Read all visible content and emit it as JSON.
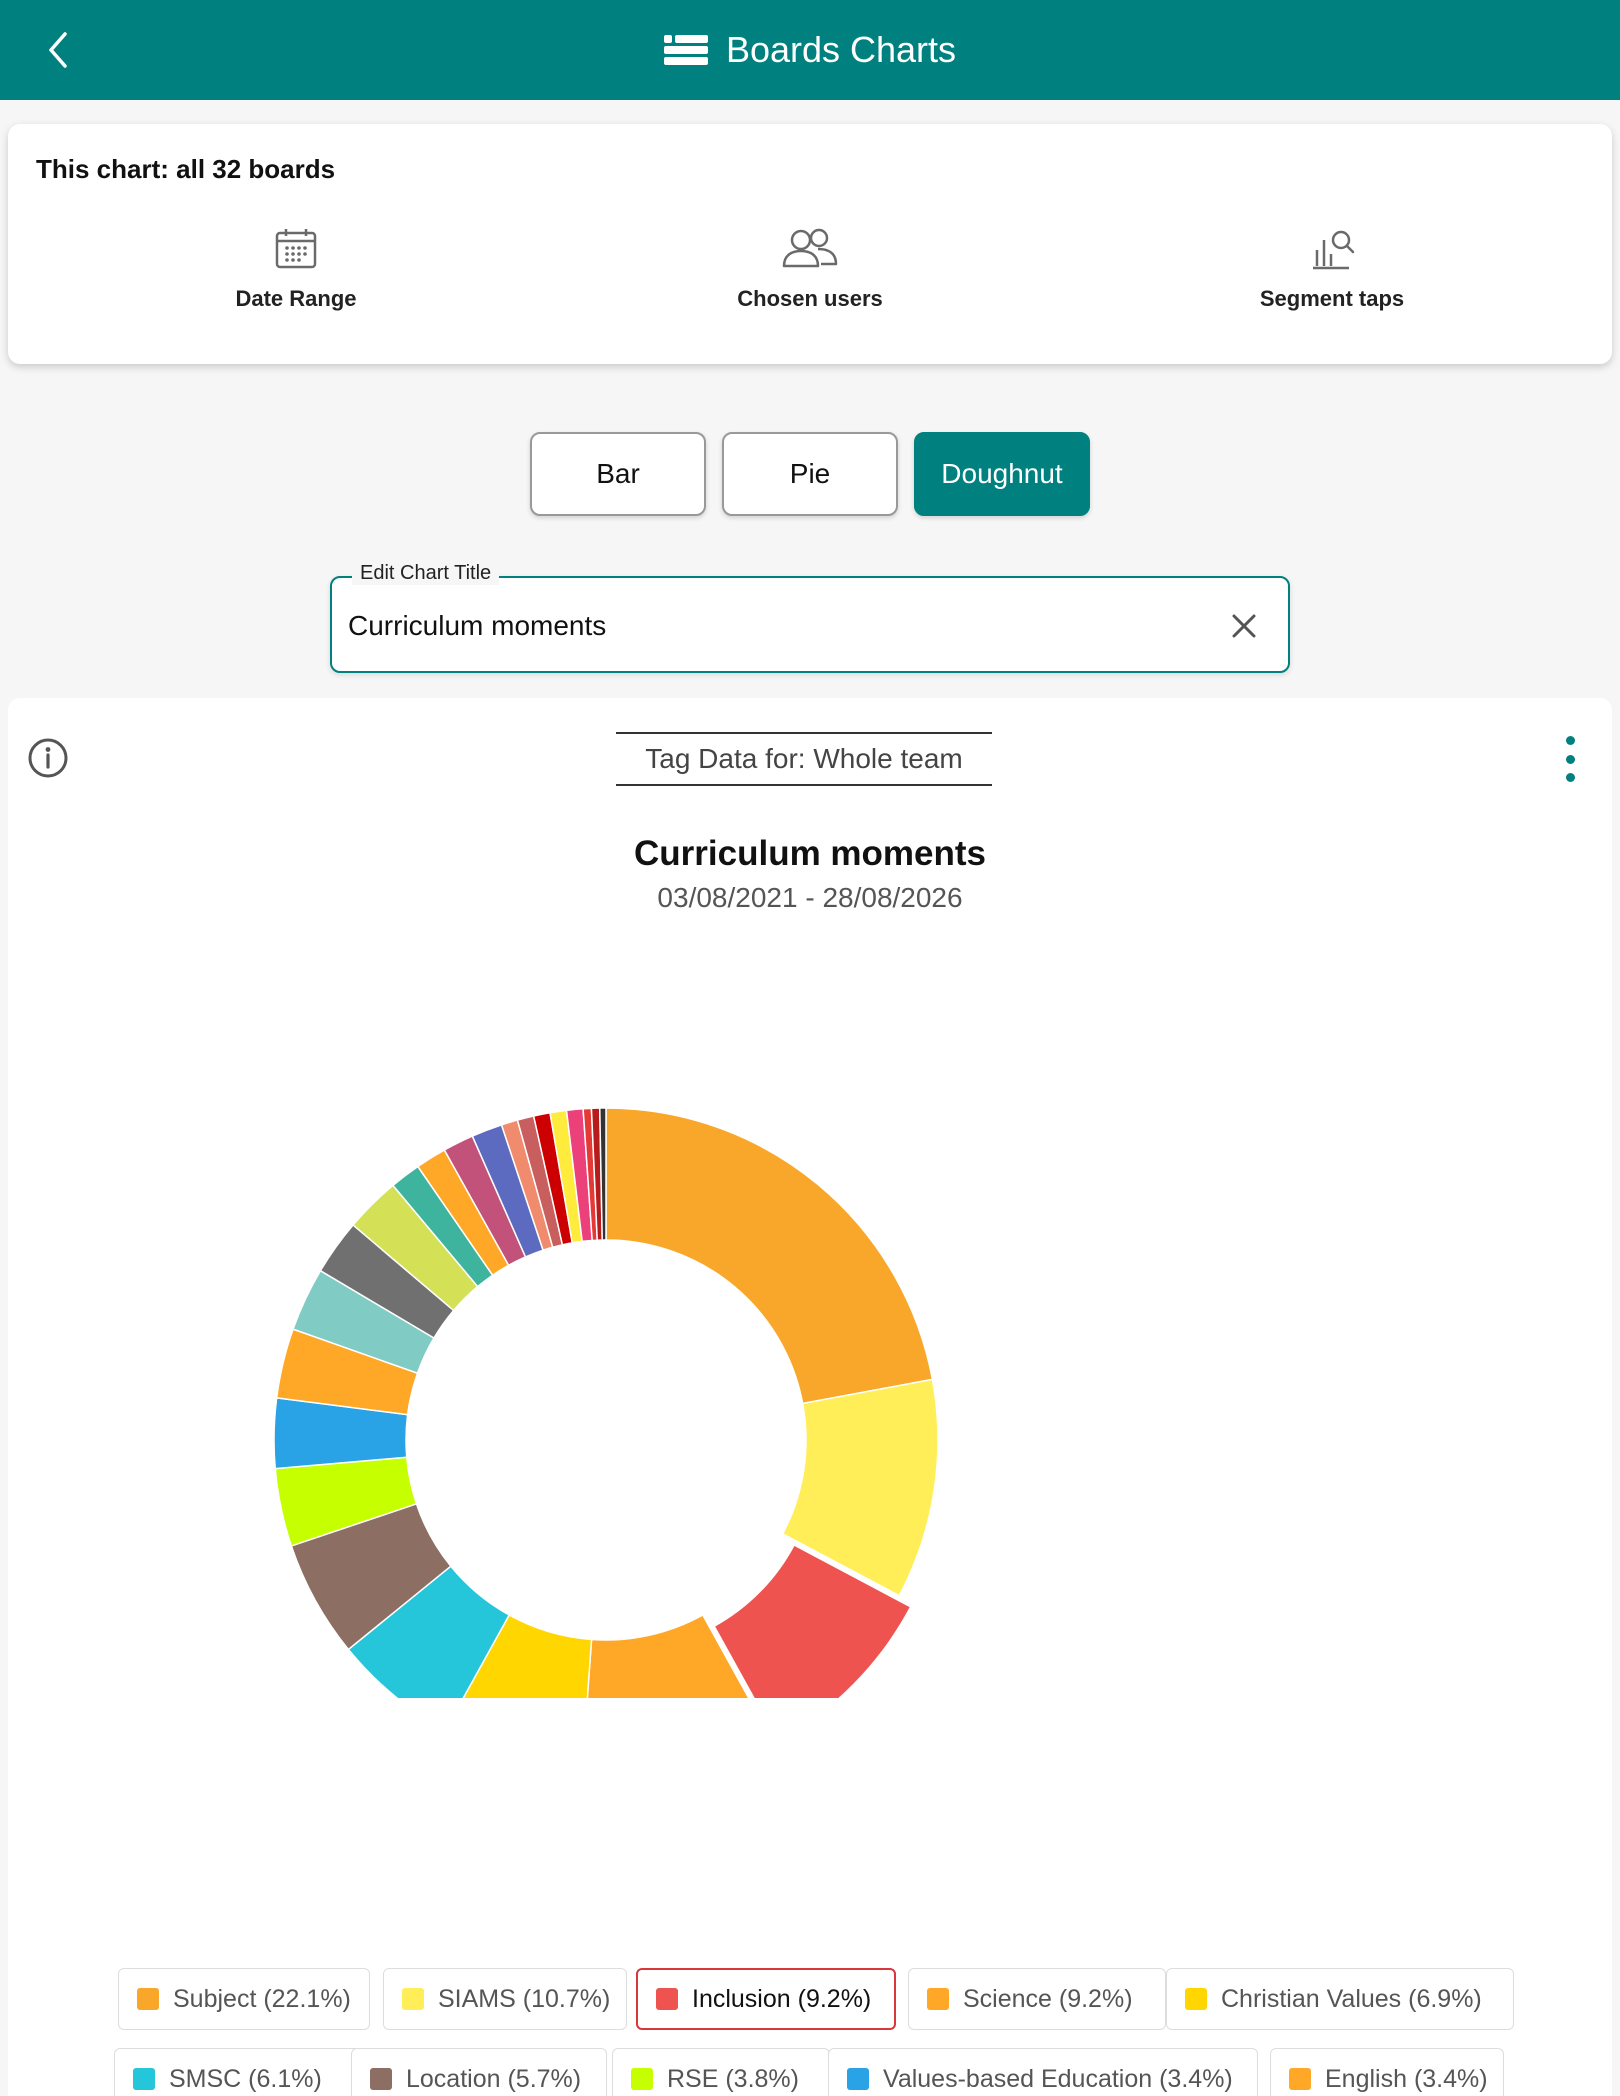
{
  "header": {
    "title": "Boards Charts",
    "back_icon": "chevron-left-icon",
    "title_icon": "boards-icon"
  },
  "filters": {
    "summary": "This chart: all 32 boards",
    "date_range_label": "Date Range",
    "chosen_users_label": "Chosen users",
    "segment_taps_label": "Segment taps"
  },
  "chart_types": {
    "bar": "Bar",
    "pie": "Pie",
    "doughnut": "Doughnut",
    "selected": "Doughnut"
  },
  "title_field": {
    "label": "Edit Chart Title",
    "value": "Curriculum moments"
  },
  "team_selector": "Tag Data for: Whole team",
  "colors": {
    "accent": "#00807e",
    "selected_border": "#d8373b"
  },
  "chart_data": {
    "type": "doughnut",
    "title": "Curriculum moments",
    "subtitle": "03/08/2021 - 28/08/2026",
    "exploded": "Inclusion",
    "series": [
      {
        "label": "Subject",
        "value": 22.1,
        "legend": "Subject (22.1%)",
        "color": "#f9a72b"
      },
      {
        "label": "SIAMS",
        "value": 10.7,
        "legend": "SIAMS (10.7%)",
        "color": "#ffee58"
      },
      {
        "label": "Inclusion",
        "value": 9.2,
        "legend": "Inclusion (9.2%)",
        "color": "#ef5350"
      },
      {
        "label": "Science",
        "value": 9.2,
        "legend": "Science (9.2%)",
        "color": "#ffa726"
      },
      {
        "label": "Christian Values",
        "value": 6.9,
        "legend": "Christian Values (6.9%)",
        "color": "#ffd600"
      },
      {
        "label": "SMSC",
        "value": 6.1,
        "legend": "SMSC (6.1%)",
        "color": "#26c6da"
      },
      {
        "label": "Location",
        "value": 5.7,
        "legend": "Location (5.7%)",
        "color": "#8d6e63"
      },
      {
        "label": "RSE",
        "value": 3.8,
        "legend": "RSE (3.8%)",
        "color": "#c6ff00"
      },
      {
        "label": "Values-based Education",
        "value": 3.4,
        "legend": "Values-based Education (3.4%)",
        "color": "#29a3e6"
      },
      {
        "label": "English",
        "value": 3.4,
        "legend": "English (3.4%)",
        "color": "#ffa726"
      },
      {
        "label": "",
        "value": 3.1,
        "legend": "",
        "color": "#80cbc4"
      },
      {
        "label": "",
        "value": 2.7,
        "legend": "",
        "color": "#707070"
      },
      {
        "label": "",
        "value": 2.7,
        "legend": "",
        "color": "#d4e157"
      },
      {
        "label": "",
        "value": 1.5,
        "legend": "",
        "color": "#3eb49e"
      },
      {
        "label": "",
        "value": 1.5,
        "legend": "",
        "color": "#ffa726"
      },
      {
        "label": "",
        "value": 1.5,
        "legend": "",
        "color": "#c2527a"
      },
      {
        "label": "",
        "value": 1.5,
        "legend": "",
        "color": "#5c6bc0"
      },
      {
        "label": "",
        "value": 0.8,
        "legend": "",
        "color": "#f08b6d"
      },
      {
        "label": "",
        "value": 0.8,
        "legend": "",
        "color": "#c95e5e"
      },
      {
        "label": "",
        "value": 0.8,
        "legend": "",
        "color": "#cc0000"
      },
      {
        "label": "",
        "value": 0.8,
        "legend": "",
        "color": "#ffeb3b"
      },
      {
        "label": "",
        "value": 0.8,
        "legend": "",
        "color": "#ec407a"
      },
      {
        "label": "",
        "value": 0.4,
        "legend": "",
        "color": "#e53935"
      },
      {
        "label": "",
        "value": 0.4,
        "legend": "",
        "color": "#b71c1c"
      },
      {
        "label": "",
        "value": 0.3,
        "legend": "",
        "color": "#333333"
      }
    ]
  }
}
